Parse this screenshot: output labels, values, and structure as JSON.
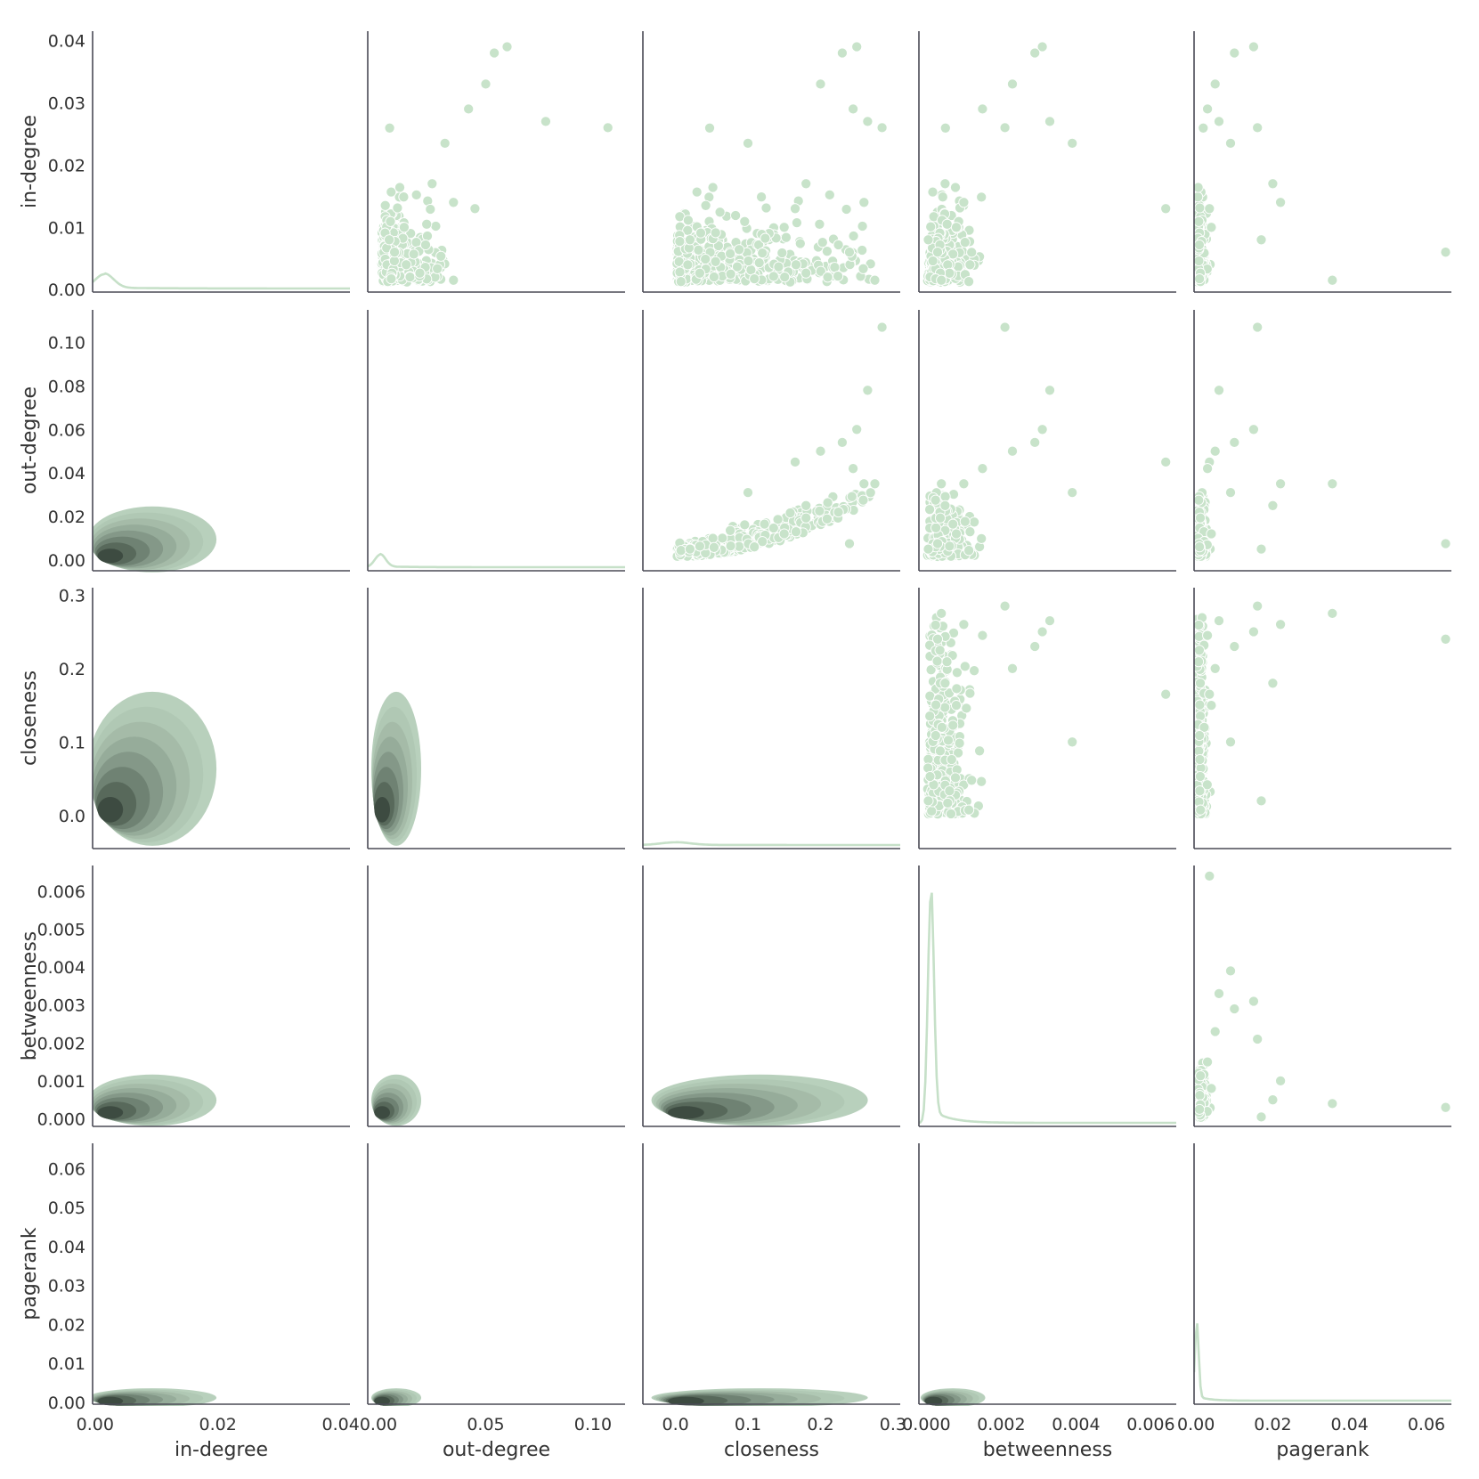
{
  "chart_data": {
    "type": "pairplot",
    "variables": [
      "in-degree",
      "out-degree",
      "closeness",
      "betweenness",
      "pagerank"
    ],
    "colors": {
      "scatter": "#c8e3ca",
      "kde_line": "#c6e0c8",
      "kde_fill_light": "#b4cdb8",
      "kde_fill_dark": "#3c4a40",
      "spine": "#4a4a55"
    },
    "layout": {
      "upper": "scatter",
      "diagonal": "kde",
      "lower": "kde-filled"
    },
    "axes": [
      {
        "name": "in-degree",
        "range": [
          -0.0004,
          0.0415
        ],
        "ticks": [
          0.0,
          0.01,
          0.02,
          0.03,
          0.04
        ],
        "tick_labels": [
          "0.00",
          "0.01",
          "0.02",
          "0.03",
          "0.04"
        ],
        "x_tick_labels": [
          "0.00",
          "0.02",
          "0.04"
        ],
        "x_ticks": [
          0.0,
          0.02,
          0.04
        ]
      },
      {
        "name": "out-degree",
        "range": [
          -0.005,
          0.115
        ],
        "ticks": [
          0.0,
          0.02,
          0.04,
          0.06,
          0.08,
          0.1
        ],
        "tick_labels": [
          "0.00",
          "0.02",
          "0.04",
          "0.06",
          "0.08",
          "0.10"
        ],
        "x_tick_labels": [
          "0.00",
          "0.05",
          "0.10"
        ],
        "x_ticks": [
          0.0,
          0.05,
          0.1
        ]
      },
      {
        "name": "closeness",
        "range": [
          -0.045,
          0.31
        ],
        "ticks": [
          0.0,
          0.1,
          0.2,
          0.3
        ],
        "tick_labels": [
          "0.0",
          "0.1",
          "0.2",
          "0.3"
        ],
        "x_tick_labels": [
          "0.0",
          "0.1",
          "0.2",
          "0.3"
        ],
        "x_ticks": [
          0.0,
          0.1,
          0.2,
          0.3
        ]
      },
      {
        "name": "betweenness",
        "range": [
          -0.0002,
          0.00668
        ],
        "ticks": [
          0.0,
          0.001,
          0.002,
          0.003,
          0.004,
          0.005,
          0.006
        ],
        "tick_labels": [
          "0.000",
          "0.001",
          "0.002",
          "0.003",
          "0.004",
          "0.005",
          "0.006"
        ],
        "x_tick_labels": [
          "0.000",
          "0.002",
          "0.004",
          "0.006"
        ],
        "x_ticks": [
          0.0,
          0.002,
          0.004,
          0.006
        ]
      },
      {
        "name": "pagerank",
        "range": [
          -0.0005,
          0.0665
        ],
        "ticks": [
          0.0,
          0.01,
          0.02,
          0.03,
          0.04,
          0.05,
          0.06
        ],
        "tick_labels": [
          "0.00",
          "0.01",
          "0.02",
          "0.03",
          "0.04",
          "0.05",
          "0.06"
        ],
        "x_tick_labels": [
          "0.00",
          "0.02",
          "0.04",
          "0.06"
        ],
        "x_ticks": [
          0.0,
          0.02,
          0.04,
          0.06
        ]
      }
    ],
    "outliers": {
      "in-degree": [
        0.039,
        0.0385,
        0.037,
        0.033,
        0.033,
        0.029,
        0.027,
        0.026,
        0.0235,
        0.013,
        0.006,
        0.0015
      ],
      "out-degree": [
        0.107,
        0.078,
        0.06,
        0.054,
        0.05,
        0.045,
        0.035,
        0.031,
        0.008,
        0.002
      ],
      "closeness": [
        0.285,
        0.275,
        0.268,
        0.265,
        0.25,
        0.24,
        0.235,
        0.165,
        0.1,
        0.02
      ],
      "betweenness": [
        0.0064,
        0.0039,
        0.0033,
        0.003,
        0.0023,
        0.002,
        0.0013,
        0.0007,
        0.0004
      ],
      "pagerank": [
        0.065,
        0.036,
        0.022,
        0.02,
        0.017,
        0.016,
        0.015,
        0.009
      ]
    },
    "diagonal_kde_peaks": {
      "in-degree": {
        "peak_x": 0.0015,
        "width": 0.0015
      },
      "out-degree": {
        "peak_x": 0.0008,
        "width": 0.0025
      },
      "closeness": {
        "peak_x": 0.0,
        "width": 0.02
      },
      "betweenness": {
        "peak_x": 0.00012,
        "width": 8e-05
      },
      "pagerank": {
        "peak_x": 0.0002,
        "width": 0.0005
      }
    },
    "grid": false
  }
}
